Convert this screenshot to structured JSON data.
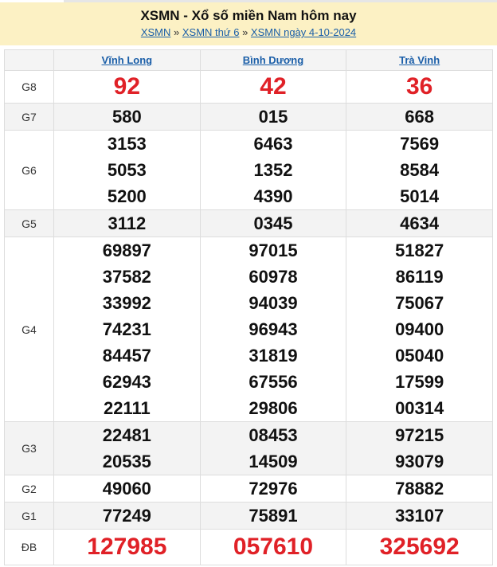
{
  "header": {
    "title": "XSMN - Xổ số miền Nam hôm nay",
    "breadcrumb": [
      "XSMN",
      "XSMN thứ 6",
      "XSMN ngày 4-10-2024"
    ],
    "separator": "»"
  },
  "provinces": [
    "Vĩnh Long",
    "Bình Dương",
    "Trà Vinh"
  ],
  "prizes": [
    {
      "label": "G8",
      "values": [
        [
          "92"
        ],
        [
          "42"
        ],
        [
          "36"
        ]
      ]
    },
    {
      "label": "G7",
      "values": [
        [
          "580"
        ],
        [
          "015"
        ],
        [
          "668"
        ]
      ]
    },
    {
      "label": "G6",
      "values": [
        [
          "3153",
          "5053",
          "5200"
        ],
        [
          "6463",
          "1352",
          "4390"
        ],
        [
          "7569",
          "8584",
          "5014"
        ]
      ]
    },
    {
      "label": "G5",
      "values": [
        [
          "3112"
        ],
        [
          "0345"
        ],
        [
          "4634"
        ]
      ]
    },
    {
      "label": "G4",
      "values": [
        [
          "69897",
          "37582",
          "33992",
          "74231",
          "84457",
          "62943",
          "22111"
        ],
        [
          "97015",
          "60978",
          "94039",
          "96943",
          "31819",
          "67556",
          "29806"
        ],
        [
          "51827",
          "86119",
          "75067",
          "09400",
          "05040",
          "17599",
          "00314"
        ]
      ]
    },
    {
      "label": "G3",
      "values": [
        [
          "22481",
          "20535"
        ],
        [
          "08453",
          "14509"
        ],
        [
          "97215",
          "93079"
        ]
      ]
    },
    {
      "label": "G2",
      "values": [
        [
          "49060"
        ],
        [
          "72976"
        ],
        [
          "78882"
        ]
      ]
    },
    {
      "label": "G1",
      "values": [
        [
          "77249"
        ],
        [
          "75891"
        ],
        [
          "33107"
        ]
      ]
    },
    {
      "label": "ĐB",
      "values": [
        [
          "127985"
        ],
        [
          "057610"
        ],
        [
          "325692"
        ]
      ]
    }
  ],
  "colors": {
    "accent_red": "#e02127",
    "link": "#1a5ea8",
    "header_bg": "#fcf1c4"
  }
}
